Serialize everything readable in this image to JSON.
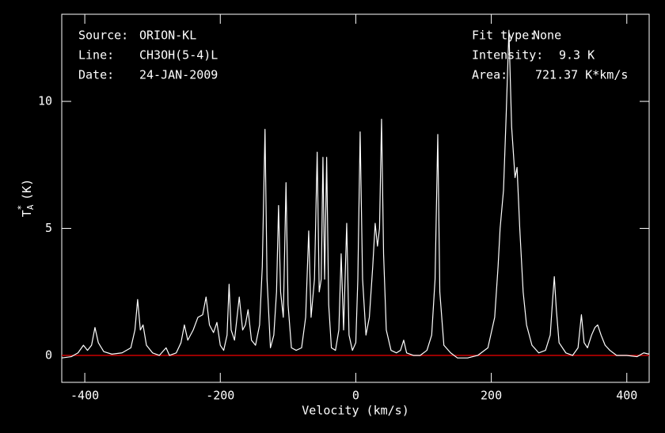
{
  "chart_data": {
    "type": "line",
    "xlabel": "Velocity (km/s)",
    "ylabel": {
      "main": "T",
      "sup": "*",
      "sub": "A",
      "unit": "(K)"
    },
    "annotations_left": [
      {
        "label": "Source:",
        "value": "ORION-KL"
      },
      {
        "label": "Line:",
        "value": "CH3OH(5-4)L"
      },
      {
        "label": "Date:",
        "value": "24-JAN-2009"
      }
    ],
    "annotations_right": [
      {
        "label": "Fit type:",
        "value": "None"
      },
      {
        "label": "Intensity:",
        "value": "9.3 K"
      },
      {
        "label": "Area:",
        "value": "721.37 K*km/s"
      }
    ],
    "xlim": [
      -434,
      433
    ],
    "ylim": [
      -1.06,
      13.43
    ],
    "xticks": [
      -400,
      -200,
      0,
      200,
      400
    ],
    "yticks": [
      0,
      5,
      10
    ],
    "baseline": 0,
    "baseline_color": "#cc0000",
    "series": [
      {
        "color": "#ffffff",
        "x": [
          -434,
          -420,
          -410,
          -402,
          -396,
          -390,
          -385,
          -380,
          -372,
          -360,
          -345,
          -332,
          -326,
          -322,
          -318,
          -314,
          -309,
          -300,
          -290,
          -280,
          -275,
          -265,
          -258,
          -253,
          -248,
          -240,
          -233,
          -226,
          -221,
          -216,
          -210,
          -205,
          -200,
          -195,
          -190,
          -187,
          -184,
          -179,
          -172,
          -167,
          -163,
          -159,
          -154,
          -148,
          -142,
          -138,
          -134,
          -131,
          -126,
          -121,
          -117,
          -114,
          -111,
          -107,
          -103,
          -100,
          -95,
          -88,
          -80,
          -74,
          -69.5,
          -66,
          -61,
          -57,
          -54,
          -51,
          -48.5,
          -46,
          -43,
          -40,
          -36,
          -30,
          -25,
          -21.6,
          -18,
          -13.4,
          -10,
          -5,
          0,
          3,
          6.4,
          10,
          15,
          20,
          25,
          28.6,
          32,
          35,
          38,
          41,
          45,
          52,
          60,
          66,
          70.7,
          75,
          85,
          95,
          105,
          112,
          117,
          121,
          124,
          130,
          140,
          150,
          165,
          180,
          195,
          205,
          210,
          213,
          218,
          222,
          226,
          230,
          235,
          238,
          242,
          247,
          252,
          260,
          270,
          280,
          287,
          290,
          293,
          296,
          300,
          310,
          320,
          328,
          333,
          337,
          342,
          348,
          353,
          357,
          362,
          368,
          375,
          385,
          400,
          415,
          425,
          433
        ],
        "values": [
          -0.1,
          -0.05,
          0.1,
          0.4,
          0.2,
          0.4,
          1.1,
          0.5,
          0.15,
          0.05,
          0.1,
          0.3,
          1.0,
          2.2,
          1.0,
          1.2,
          0.4,
          0.1,
          0.0,
          0.3,
          0.0,
          0.1,
          0.5,
          1.2,
          0.6,
          1.0,
          1.5,
          1.6,
          2.3,
          1.2,
          0.9,
          1.3,
          0.4,
          0.2,
          0.8,
          2.8,
          1.0,
          0.6,
          2.3,
          1.0,
          1.2,
          1.8,
          0.6,
          0.4,
          1.2,
          3.5,
          8.9,
          3.0,
          0.3,
          0.8,
          2.5,
          5.9,
          2.5,
          1.5,
          6.8,
          2.0,
          0.3,
          0.2,
          0.3,
          1.5,
          4.9,
          1.5,
          3.0,
          8.0,
          2.5,
          3.0,
          7.8,
          3.0,
          7.8,
          2.0,
          0.3,
          0.2,
          1.0,
          4.0,
          1.0,
          5.2,
          0.8,
          0.2,
          0.5,
          3.0,
          8.8,
          3.0,
          0.8,
          1.5,
          3.5,
          5.2,
          4.3,
          5.0,
          9.3,
          4.0,
          1.0,
          0.2,
          0.1,
          0.2,
          0.6,
          0.1,
          0.0,
          0.0,
          0.2,
          0.8,
          3.0,
          8.7,
          2.5,
          0.4,
          0.1,
          -0.1,
          -0.1,
          0.0,
          0.3,
          1.5,
          3.5,
          5.0,
          6.5,
          9.5,
          12.8,
          9.0,
          7.0,
          7.4,
          5.0,
          2.5,
          1.2,
          0.4,
          0.1,
          0.2,
          0.8,
          2.0,
          3.1,
          1.8,
          0.5,
          0.1,
          0.0,
          0.3,
          1.6,
          0.5,
          0.3,
          0.8,
          1.1,
          1.2,
          0.8,
          0.4,
          0.2,
          0.0,
          0.0,
          -0.05,
          0.1,
          0.05
        ]
      }
    ]
  }
}
